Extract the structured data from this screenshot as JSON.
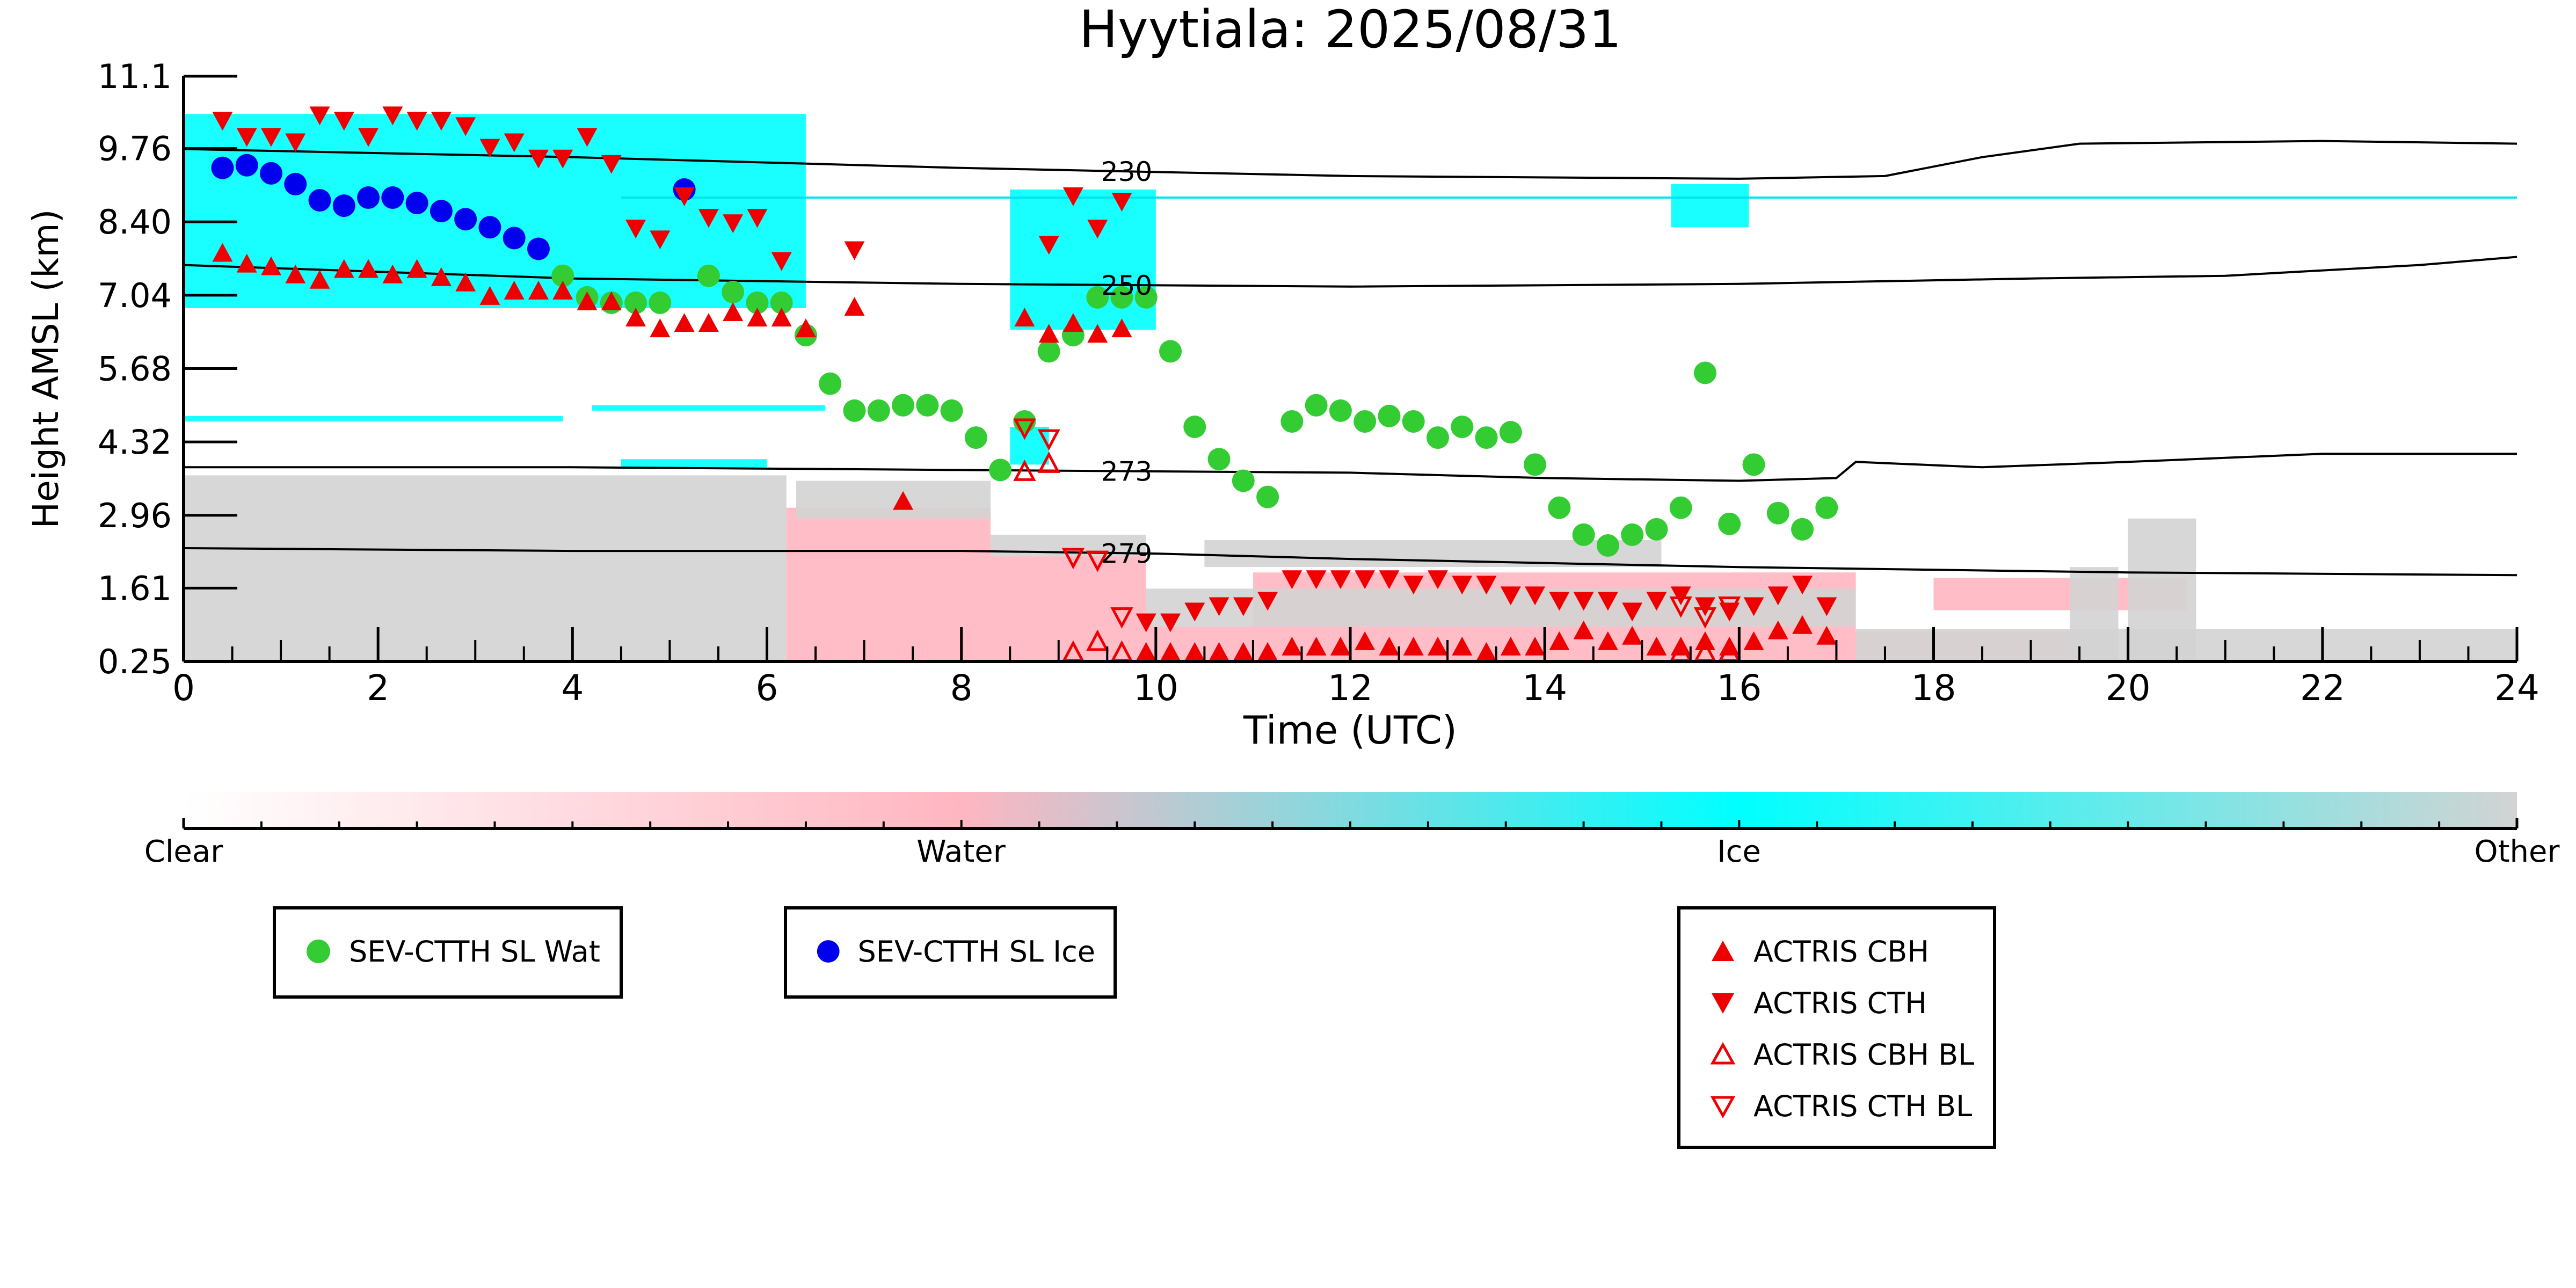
{
  "chart_data": {
    "type": "scatter",
    "title": "Hyytiala: 2025/08/31",
    "xlabel": "Time (UTC)",
    "ylabel": "Height AMSL (km)",
    "xlim": [
      0,
      24
    ],
    "ylim": [
      0.25,
      11.1
    ],
    "x_ticks": [
      "0",
      "2",
      "4",
      "6",
      "8",
      "10",
      "12",
      "14",
      "16",
      "18",
      "20",
      "22",
      "24"
    ],
    "y_ticks": [
      "0.25",
      "1.61",
      "2.96",
      "4.32",
      "5.68",
      "7.04",
      "8.40",
      "9.76",
      "11.1"
    ],
    "colorbar": {
      "labels": [
        "Clear",
        "Water",
        "Ice",
        "Other"
      ],
      "colors": [
        "#ffffff",
        "#ffb6c1",
        "#00ffff",
        "#d3d3d3"
      ]
    },
    "isotherms": [
      {
        "label": "230",
        "points": [
          [
            0,
            9.75
          ],
          [
            4,
            9.6
          ],
          [
            8,
            9.4
          ],
          [
            12,
            9.25
          ],
          [
            16,
            9.2
          ],
          [
            17.5,
            9.25
          ],
          [
            18.5,
            9.6
          ],
          [
            19.5,
            9.85
          ],
          [
            22,
            9.9
          ],
          [
            24,
            9.85
          ]
        ]
      },
      {
        "label": "250",
        "points": [
          [
            0,
            7.6
          ],
          [
            4,
            7.35
          ],
          [
            8,
            7.25
          ],
          [
            12,
            7.2
          ],
          [
            16,
            7.25
          ],
          [
            17.5,
            7.3
          ],
          [
            19,
            7.35
          ],
          [
            21,
            7.4
          ],
          [
            23,
            7.6
          ],
          [
            24,
            7.75
          ]
        ]
      },
      {
        "label": "273",
        "points": [
          [
            0,
            3.85
          ],
          [
            4,
            3.85
          ],
          [
            8,
            3.8
          ],
          [
            12,
            3.75
          ],
          [
            14,
            3.65
          ],
          [
            16,
            3.6
          ],
          [
            17,
            3.65
          ],
          [
            17.2,
            3.95
          ],
          [
            18.5,
            3.85
          ],
          [
            20,
            3.95
          ],
          [
            22,
            4.1
          ],
          [
            24,
            4.1
          ]
        ]
      },
      {
        "label": "279",
        "points": [
          [
            0,
            2.35
          ],
          [
            4,
            2.3
          ],
          [
            8,
            2.3
          ],
          [
            10,
            2.25
          ],
          [
            12,
            2.15
          ],
          [
            16,
            2.0
          ],
          [
            18,
            1.95
          ],
          [
            20,
            1.9
          ],
          [
            24,
            1.85
          ]
        ]
      }
    ],
    "series": [
      {
        "name": "SEV-CTTH SL Wat",
        "marker": "circle",
        "color": "#33cc33",
        "x": [
          3.9,
          4.15,
          4.4,
          4.65,
          4.9,
          5.4,
          5.65,
          5.9,
          6.15,
          6.4,
          6.65,
          6.9,
          7.15,
          7.4,
          7.65,
          7.9,
          8.15,
          8.4,
          8.65,
          8.9,
          9.15,
          9.4,
          9.65,
          9.9,
          10.15,
          10.4,
          10.65,
          10.9,
          11.15,
          11.4,
          11.65,
          11.9,
          12.15,
          12.4,
          12.65,
          12.9,
          13.15,
          13.4,
          13.65,
          13.9,
          14.15,
          14.4,
          14.65,
          14.9,
          15.15,
          15.4,
          15.65,
          15.9,
          16.15,
          16.4,
          16.65,
          16.9
        ],
        "y": [
          7.4,
          7.0,
          6.9,
          6.9,
          6.9,
          7.4,
          7.1,
          6.9,
          6.9,
          6.3,
          5.4,
          4.9,
          4.9,
          5.0,
          5.0,
          4.9,
          4.4,
          3.8,
          4.7,
          6.0,
          6.3,
          7.0,
          7.0,
          7.0,
          6.0,
          4.6,
          4.0,
          3.6,
          3.3,
          4.7,
          5.0,
          4.9,
          4.7,
          4.8,
          4.7,
          4.4,
          4.6,
          4.4,
          4.5,
          3.9,
          3.1,
          2.6,
          2.4,
          2.6,
          2.7,
          3.1,
          5.6,
          2.8,
          3.9,
          3.0,
          2.7,
          3.1
        ]
      },
      {
        "name": "SEV-CTTH SL Ice",
        "marker": "circle",
        "color": "#0000ee",
        "x": [
          0.4,
          0.65,
          0.9,
          1.15,
          1.4,
          1.65,
          1.9,
          2.15,
          2.4,
          2.65,
          2.9,
          3.15,
          3.4,
          3.65,
          5.15
        ],
        "y": [
          9.4,
          9.45,
          9.3,
          9.1,
          8.8,
          8.7,
          8.85,
          8.85,
          8.75,
          8.6,
          8.45,
          8.3,
          8.1,
          7.9,
          9.0
        ]
      },
      {
        "name": "ACTRIS CBH",
        "marker": "triangle-up",
        "color": "#ee0000",
        "x": [
          0.4,
          0.65,
          0.9,
          1.15,
          1.4,
          1.65,
          1.9,
          2.15,
          2.4,
          2.65,
          2.9,
          3.15,
          3.4,
          3.65,
          3.9,
          4.15,
          4.4,
          4.65,
          4.9,
          5.15,
          5.4,
          5.65,
          5.9,
          6.15,
          6.4,
          6.9,
          7.4,
          8.65,
          8.9,
          9.15,
          9.4,
          9.65,
          9.9,
          10.15,
          10.4,
          10.65,
          10.9,
          11.15,
          11.4,
          11.65,
          11.9,
          12.15,
          12.4,
          12.65,
          12.9,
          13.15,
          13.4,
          13.65,
          13.9,
          14.15,
          14.4,
          14.65,
          14.9,
          15.15,
          15.4,
          15.65,
          15.9,
          16.15,
          16.4,
          16.65,
          16.9
        ],
        "y": [
          7.8,
          7.6,
          7.55,
          7.4,
          7.3,
          7.5,
          7.5,
          7.4,
          7.5,
          7.35,
          7.25,
          7.0,
          7.1,
          7.1,
          7.1,
          6.9,
          6.9,
          6.6,
          6.4,
          6.5,
          6.5,
          6.7,
          6.6,
          6.6,
          6.4,
          6.8,
          3.2,
          6.6,
          6.3,
          6.5,
          6.3,
          6.4,
          0.4,
          0.4,
          0.4,
          0.4,
          0.4,
          0.4,
          0.5,
          0.5,
          0.5,
          0.6,
          0.5,
          0.5,
          0.5,
          0.5,
          0.4,
          0.5,
          0.5,
          0.6,
          0.8,
          0.6,
          0.7,
          0.5,
          0.5,
          0.6,
          0.5,
          0.6,
          0.8,
          0.9,
          0.7
        ]
      },
      {
        "name": "ACTRIS CTH",
        "marker": "triangle-down",
        "color": "#ee0000",
        "x": [
          0.4,
          0.65,
          0.9,
          1.15,
          1.4,
          1.65,
          1.9,
          2.15,
          2.4,
          2.65,
          2.9,
          3.15,
          3.4,
          3.65,
          3.9,
          4.15,
          4.4,
          4.65,
          4.9,
          5.15,
          5.4,
          5.65,
          5.9,
          6.15,
          6.9,
          8.9,
          9.15,
          9.4,
          9.65,
          9.9,
          10.15,
          10.4,
          10.65,
          10.9,
          11.15,
          11.4,
          11.65,
          11.9,
          12.15,
          12.4,
          12.65,
          12.9,
          13.15,
          13.4,
          13.65,
          13.9,
          14.15,
          14.4,
          14.65,
          14.9,
          15.15,
          15.4,
          15.65,
          15.9,
          16.15,
          16.4,
          16.65,
          16.9
        ],
        "y": [
          10.3,
          10.0,
          10.0,
          9.9,
          10.4,
          10.3,
          10.0,
          10.4,
          10.3,
          10.3,
          10.2,
          9.8,
          9.9,
          9.6,
          9.6,
          10.0,
          9.5,
          8.3,
          8.1,
          8.9,
          8.5,
          8.4,
          8.5,
          7.7,
          7.9,
          8.0,
          8.9,
          8.3,
          8.8,
          1.0,
          1.0,
          1.2,
          1.3,
          1.3,
          1.4,
          1.8,
          1.8,
          1.8,
          1.8,
          1.8,
          1.7,
          1.8,
          1.7,
          1.7,
          1.5,
          1.5,
          1.4,
          1.4,
          1.4,
          1.2,
          1.4,
          1.5,
          1.3,
          1.2,
          1.3,
          1.5,
          1.7,
          1.3
        ]
      },
      {
        "name": "ACTRIS CBH BL",
        "marker": "triangle-up-open",
        "color": "#ee0000",
        "x": [
          8.65,
          8.9,
          9.15,
          9.4,
          9.65,
          15.4,
          15.65,
          15.9
        ],
        "y": [
          3.75,
          3.9,
          0.4,
          0.6,
          0.4,
          0.4,
          0.4,
          0.4
        ]
      },
      {
        "name": "ACTRIS CTH BL",
        "marker": "triangle-down-open",
        "color": "#ee0000",
        "x": [
          8.65,
          8.9,
          9.15,
          9.4,
          9.65,
          15.4,
          15.65,
          15.9
        ],
        "y": [
          4.6,
          4.4,
          2.2,
          2.15,
          1.1,
          1.3,
          1.1,
          1.3
        ]
      }
    ]
  }
}
